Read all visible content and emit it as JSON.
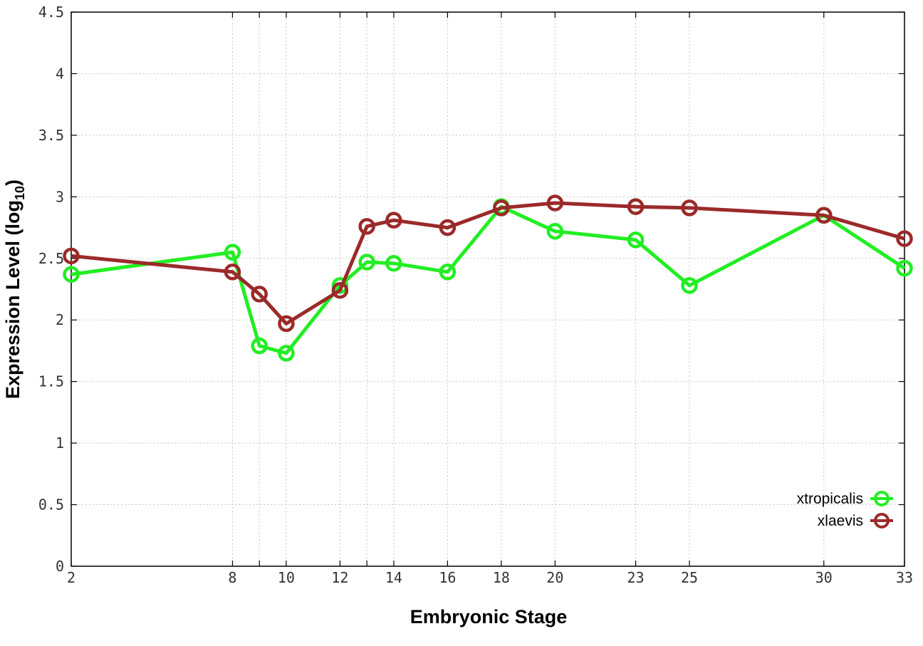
{
  "chart_data": {
    "type": "line",
    "xlabel": "Embryonic Stage",
    "ylabel": "Expression Level (log",
    "ylabel_subscript": "10",
    "ylabel_close": ")",
    "x_ticks": [
      2,
      8,
      10,
      12,
      14,
      16,
      18,
      20,
      23,
      25,
      30,
      33
    ],
    "y_ticks": [
      "0",
      "0.5",
      "1",
      "1.5",
      "2",
      "2.5",
      "3",
      "3.5",
      "4",
      "4.5"
    ],
    "x_positions": [
      2,
      8,
      9,
      10,
      12,
      13,
      14,
      16,
      18,
      20,
      23,
      25,
      30,
      33
    ],
    "ylim": [
      0,
      4.5
    ],
    "grid": true,
    "legend_position": "bottom-right",
    "series": [
      {
        "name": "xtropicalis",
        "color": "#22ee22",
        "x": [
          2,
          8,
          9,
          10,
          12,
          13,
          14,
          16,
          18,
          20,
          23,
          25,
          30,
          33
        ],
        "y": [
          2.37,
          2.55,
          1.79,
          1.73,
          2.28,
          2.47,
          2.46,
          2.39,
          2.92,
          2.72,
          2.65,
          2.28,
          2.85,
          2.42
        ]
      },
      {
        "name": "xlaevis",
        "color": "#9b2a2a",
        "x": [
          2,
          8,
          9,
          10,
          12,
          13,
          14,
          16,
          18,
          20,
          23,
          25,
          30,
          33
        ],
        "y": [
          2.52,
          2.39,
          2.21,
          1.97,
          2.24,
          2.76,
          2.81,
          2.75,
          2.91,
          2.95,
          2.92,
          2.91,
          2.85,
          2.66
        ]
      }
    ]
  }
}
